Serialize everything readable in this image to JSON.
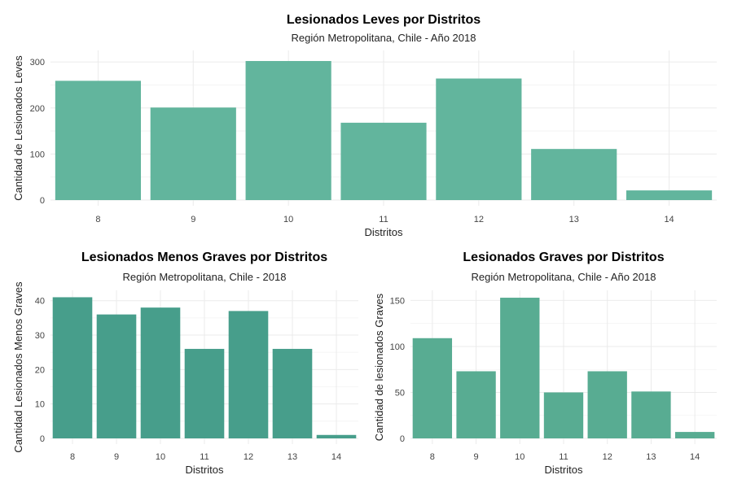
{
  "chart_data": [
    {
      "type": "bar",
      "title": "Lesionados Leves por Distritos",
      "subtitle": "Región Metropolitana, Chile - Año 2018",
      "xlabel": "Distritos",
      "ylabel": "Cantidad de Lesionados Leves",
      "categories": [
        "8",
        "9",
        "10",
        "11",
        "12",
        "13",
        "14"
      ],
      "values": [
        259,
        201,
        302,
        168,
        264,
        111,
        21
      ],
      "ylim": [
        0,
        325
      ],
      "yticks": [
        0,
        100,
        200,
        300
      ],
      "color": "#62b59d",
      "grid": true
    },
    {
      "type": "bar",
      "title": "Lesionados Menos Graves por Distritos",
      "subtitle": "Región Metropolitana, Chile - 2018",
      "xlabel": "Distritos",
      "ylabel": "Cantidad Lesionados Menos Graves",
      "categories": [
        "8",
        "9",
        "10",
        "11",
        "12",
        "13",
        "14"
      ],
      "values": [
        41,
        36,
        38,
        26,
        37,
        26,
        1
      ],
      "ylim": [
        0,
        43
      ],
      "yticks": [
        0,
        10,
        20,
        30,
        40
      ],
      "color": "#479e8b",
      "grid": true
    },
    {
      "type": "bar",
      "title": "Lesionados Graves por Distritos",
      "subtitle": "Región Metropolitana, Chile - Año 2018",
      "xlabel": "Distritos",
      "ylabel": "Cantidad de lesionados Graves",
      "categories": [
        "8",
        "9",
        "10",
        "11",
        "12",
        "13",
        "14"
      ],
      "values": [
        109,
        73,
        153,
        50,
        73,
        51,
        7
      ],
      "ylim": [
        0,
        161
      ],
      "yticks": [
        0,
        50,
        100,
        150
      ],
      "color": "#58ac92",
      "grid": true
    }
  ]
}
